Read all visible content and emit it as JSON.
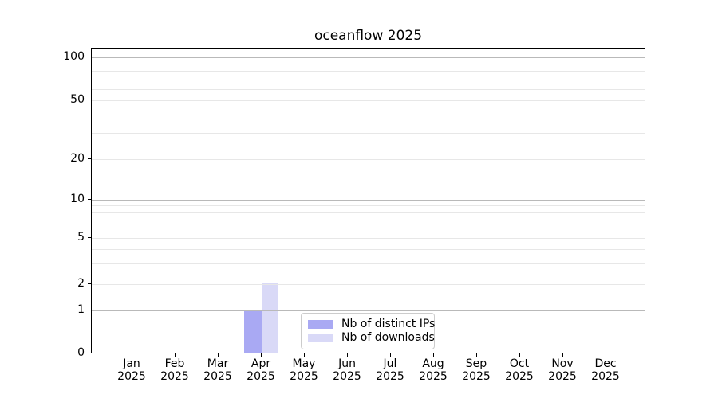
{
  "title": "oceanflow 2025",
  "chart_data": {
    "type": "bar",
    "title": "oceanflow 2025",
    "categories": [
      "Jan 2025",
      "Feb 2025",
      "Mar 2025",
      "Apr 2025",
      "May 2025",
      "Jun 2025",
      "Jul 2025",
      "Aug 2025",
      "Sep 2025",
      "Oct 2025",
      "Nov 2025",
      "Dec 2025"
    ],
    "series": [
      {
        "name": "Nb of distinct IPs",
        "color": "#a9a9f3",
        "values": [
          0,
          0,
          0,
          1,
          0,
          0,
          0,
          0,
          0,
          0,
          0,
          0
        ]
      },
      {
        "name": "Nb of downloads",
        "color": "#d9d9f7",
        "values": [
          0,
          0,
          0,
          2,
          0,
          0,
          0,
          0,
          0,
          0,
          0,
          0
        ]
      }
    ],
    "xlabel": "",
    "ylabel": "",
    "y_axis": {
      "tick_values": [
        0,
        1,
        2,
        5,
        10,
        20,
        50,
        100
      ],
      "tick_labels": [
        "0",
        "1",
        "2",
        "5",
        "10",
        "20",
        "50",
        "100"
      ],
      "scale": "symlog-like",
      "range": [
        0,
        100
      ]
    },
    "grid": {
      "horizontal": true,
      "vertical": false,
      "major_color": "#b9b9b9",
      "minor_color": "#e7e7e7",
      "grid_above_bars": true
    },
    "legend": {
      "position": "lower center",
      "entries": [
        {
          "label": "Nb of distinct IPs",
          "color": "#a9a9f3"
        },
        {
          "label": "Nb of downloads",
          "color": "#d9d9f7"
        }
      ]
    }
  }
}
